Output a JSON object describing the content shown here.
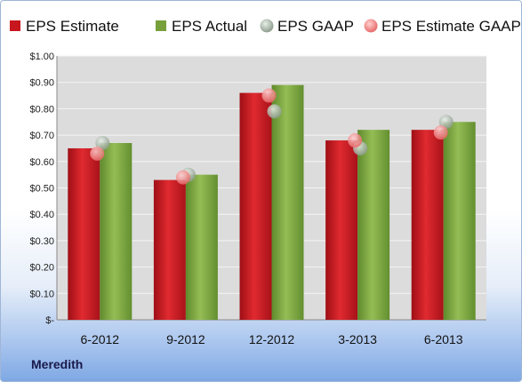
{
  "footer": {
    "company": "Meredith"
  },
  "colors": {
    "estimate": "#c8161e",
    "actual": "#77a03a",
    "gaap": "#9aa89a",
    "estimate_gaap": "#f07a7a",
    "plot_bg": "#dcdcdc"
  },
  "chart_data": {
    "type": "bar",
    "categories": [
      "6-2012",
      "9-2012",
      "12-2012",
      "3-2013",
      "6-2013"
    ],
    "series": [
      {
        "name": "EPS Estimate",
        "kind": "bar",
        "values": [
          0.65,
          0.53,
          0.86,
          0.68,
          0.72
        ]
      },
      {
        "name": "EPS Actual",
        "kind": "bar",
        "values": [
          0.67,
          0.55,
          0.89,
          0.72,
          0.75
        ]
      },
      {
        "name": "EPS GAAP",
        "kind": "marker",
        "values": [
          0.67,
          0.55,
          0.79,
          0.65,
          0.75
        ]
      },
      {
        "name": "EPS Estimate GAAP",
        "kind": "marker",
        "values": [
          0.63,
          0.54,
          0.85,
          0.68,
          0.71
        ]
      }
    ],
    "y_ticks": [
      "$-",
      "$0.10",
      "$0.20",
      "$0.30",
      "$0.40",
      "$0.50",
      "$0.60",
      "$0.70",
      "$0.80",
      "$0.90",
      "$1.00"
    ],
    "ylim": [
      0,
      1.0
    ],
    "grid": true,
    "legend": "top",
    "title": "",
    "xlabel": "",
    "ylabel": ""
  }
}
